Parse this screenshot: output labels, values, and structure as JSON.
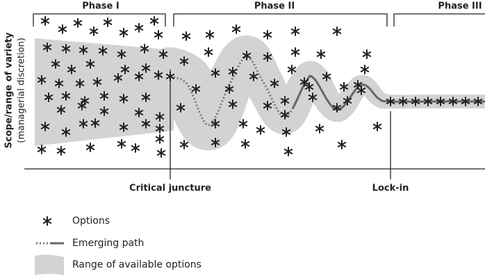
{
  "phases": [
    "Phase I",
    "Phase II",
    "Phase III"
  ],
  "y_axis": {
    "title": "Scope/range of variety",
    "subtitle": "(managerial discretion)"
  },
  "markers": {
    "critical_juncture": "Critical juncture",
    "lock_in": "Lock-in"
  },
  "legend": [
    "Options",
    "Emerging path",
    "Range of available options"
  ]
}
